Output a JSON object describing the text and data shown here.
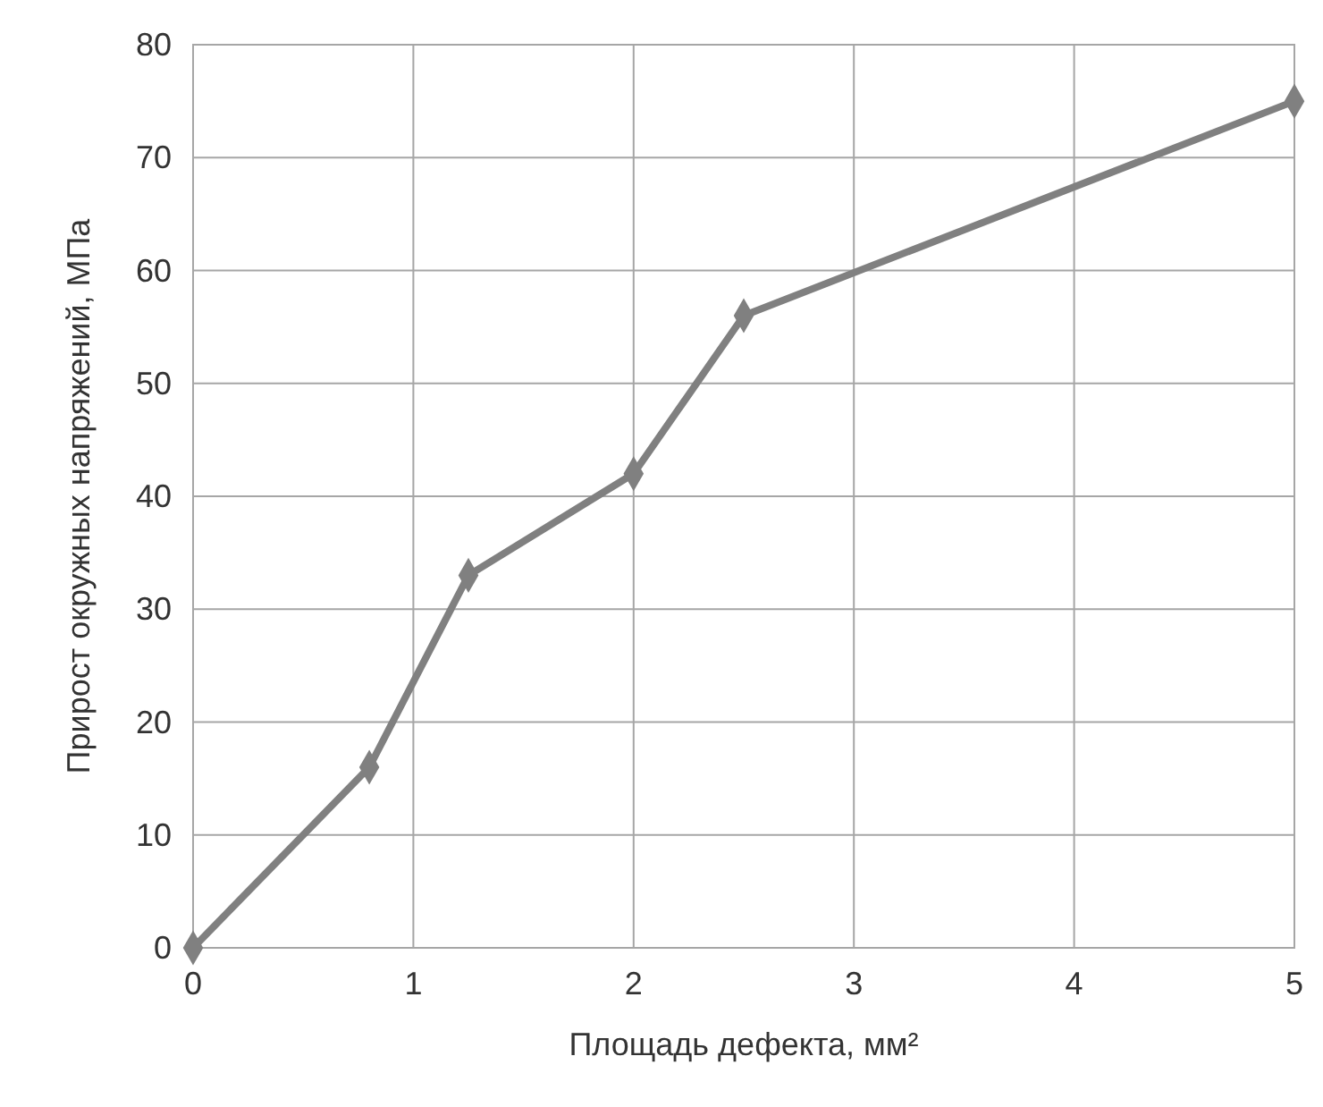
{
  "chart_data": {
    "type": "line",
    "xlabel": "Площадь дефекта, мм²",
    "ylabel": "Прирост окружных напряжений, МПа",
    "x": [
      0,
      0.8,
      1.25,
      2,
      2.5,
      5
    ],
    "series": [
      {
        "color": "#808080",
        "values": [
          0,
          16,
          33,
          42,
          56,
          75
        ]
      }
    ],
    "xlim": [
      0,
      5
    ],
    "xticks": [
      0,
      1,
      2,
      3,
      4,
      5
    ],
    "ylim": [
      0,
      80
    ],
    "yticks": [
      0,
      10,
      20,
      30,
      40,
      50,
      60,
      70,
      80
    ],
    "grid": true,
    "marker": "diamond",
    "line_style": "solid"
  }
}
